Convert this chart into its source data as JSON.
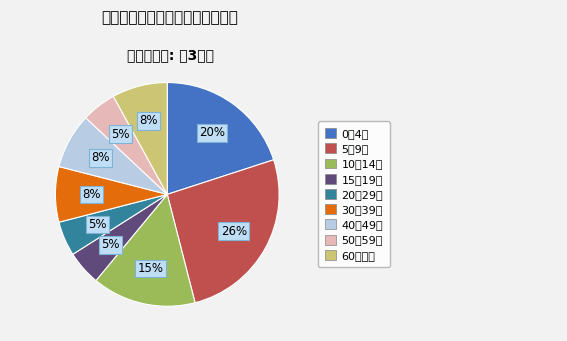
{
  "title_line1": "インフルエンザ年齢群別報告割合",
  "title_line2": "（神奈川県: 第3週）",
  "labels": [
    "0－4歳",
    "5－9歳",
    "10－14歳",
    "15－19歳",
    "20－29歳",
    "30－39歳",
    "40－49歳",
    "50－59歳",
    "60歳以上"
  ],
  "values": [
    20,
    26,
    15,
    5,
    5,
    8,
    8,
    5,
    8
  ],
  "colors": [
    "#4472C4",
    "#C0504D",
    "#9BBB59",
    "#604A7B",
    "#31849B",
    "#E46C0A",
    "#B8CCE4",
    "#E6B9B8",
    "#CCC574"
  ],
  "background_color": "#F2F2F2",
  "legend_labels": [
    "0－4歳",
    "5－9歳",
    "10－14歳",
    "15－19歳",
    "20－29歳",
    "30－39歳",
    "40－49歳",
    "50－59歳",
    "60歳以上"
  ],
  "label_box_color": "#BFDEF5",
  "label_edge_color": "#7FB3D5"
}
